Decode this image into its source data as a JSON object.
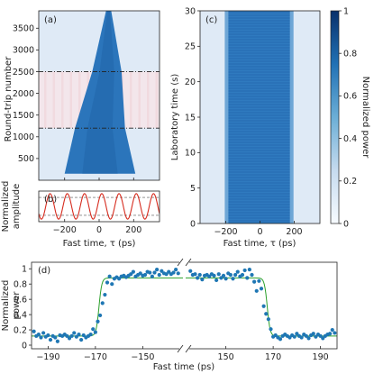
{
  "chart_data": [
    {
      "panel": "(a)",
      "type": "heatmap",
      "xlabel": "",
      "ylabel": "Round-trip number",
      "x_ticks": [
        "-200",
        "0",
        "200"
      ],
      "y_ticks": [
        "500",
        "1000",
        "1500",
        "2000",
        "2500",
        "3000",
        "3500"
      ],
      "xlim": [
        -350,
        350
      ],
      "ylim": [
        0,
        3900
      ],
      "dashed_lines_y": [
        1200,
        2500
      ],
      "shaded_band_y": [
        1200,
        2500
      ],
      "pulse_edges": [
        {
          "n": 150,
          "left": -200,
          "right": 210
        },
        {
          "n": 1200,
          "left": -140,
          "right": 150
        },
        {
          "n": 2500,
          "left": -40,
          "right": 130
        },
        {
          "n": 3900,
          "left": 40,
          "right": 70
        }
      ]
    },
    {
      "panel": "(b)",
      "type": "line",
      "xlabel": "Fast time, τ (ps)",
      "ylabel": "Normalized amplitude",
      "x_ticks": [
        "-200",
        "0",
        "200"
      ],
      "xlim": [
        -350,
        350
      ],
      "ylim": [
        -1.2,
        1.2
      ],
      "period_ps": 100,
      "dashed_lines_y": [
        0.7,
        -0.7
      ],
      "color": "#d62b1e"
    },
    {
      "panel": "(c)",
      "type": "heatmap",
      "xlabel": "Fast time, τ (ps)",
      "ylabel": "Laboratory time (s)",
      "x_ticks": [
        "-200",
        "0",
        "200"
      ],
      "y_ticks": [
        "0",
        "5",
        "10",
        "15",
        "20",
        "25",
        "30"
      ],
      "xlim": [
        -350,
        350
      ],
      "ylim": [
        0,
        30
      ],
      "pulse_left": -190,
      "pulse_right": 180,
      "colorbar": {
        "label": "Normalized power",
        "ticks": [
          "0",
          "0.2",
          "0.4",
          "0.6",
          "0.8",
          "1"
        ],
        "range": [
          0,
          1
        ]
      }
    },
    {
      "panel": "(d)",
      "type": "scatter",
      "xlabel": "Fast time (ps)",
      "ylabel": "Normalized power",
      "ylim": [
        0,
        1.05
      ],
      "y_ticks": [
        "0",
        "0.2",
        "0.4",
        "0.6",
        "0.8",
        "1"
      ],
      "left_segment": {
        "xlim": [
          -197,
          -133
        ],
        "x_ticks": [
          "-190",
          "-170",
          "-150"
        ]
      },
      "right_segment": {
        "xlim": [
          133,
          197
        ],
        "x_ticks": [
          "150",
          "170",
          "190"
        ]
      },
      "fit_color": "#2ca02c",
      "points_color": "#1f77b4",
      "fit_levels": {
        "low": 0.12,
        "high": 0.88
      },
      "left_edge_ps": -168.5,
      "right_edge_ps": 167.5,
      "points_left": [
        [
          -196,
          0.18
        ],
        [
          -195,
          0.12
        ],
        [
          -194,
          0.14
        ],
        [
          -193,
          0.1
        ],
        [
          -192,
          0.16
        ],
        [
          -191,
          0.11
        ],
        [
          -190,
          0.13
        ],
        [
          -189,
          0.07
        ],
        [
          -188,
          0.12
        ],
        [
          -187,
          0.1
        ],
        [
          -186,
          0.05
        ],
        [
          -185,
          0.13
        ],
        [
          -184,
          0.12
        ],
        [
          -183,
          0.14
        ],
        [
          -182,
          0.12
        ],
        [
          -181,
          0.09
        ],
        [
          -180,
          0.12
        ],
        [
          -179,
          0.16
        ],
        [
          -178,
          0.11
        ],
        [
          -177,
          0.14
        ],
        [
          -176,
          0.07
        ],
        [
          -175,
          0.13
        ],
        [
          -174,
          0.1
        ],
        [
          -173,
          0.12
        ],
        [
          -172,
          0.14
        ],
        [
          -171,
          0.21
        ],
        [
          -170,
          0.17
        ],
        [
          -169,
          0.31
        ],
        [
          -168,
          0.39
        ],
        [
          -167,
          0.55
        ],
        [
          -166,
          0.66
        ],
        [
          -165,
          0.82
        ],
        [
          -164,
          0.9
        ],
        [
          -163,
          0.8
        ],
        [
          -162,
          0.87
        ],
        [
          -161,
          0.89
        ],
        [
          -160,
          0.87
        ],
        [
          -159,
          0.9
        ],
        [
          -158,
          0.91
        ],
        [
          -157,
          0.89
        ],
        [
          -156,
          0.91
        ],
        [
          -155,
          0.93
        ],
        [
          -154,
          0.96
        ],
        [
          -153,
          0.9
        ],
        [
          -152,
          0.92
        ],
        [
          -151,
          0.94
        ],
        [
          -150,
          0.91
        ],
        [
          -149,
          0.92
        ],
        [
          -148,
          0.96
        ],
        [
          -147,
          0.95
        ],
        [
          -146,
          0.9
        ],
        [
          -145,
          0.95
        ],
        [
          -144,
          0.99
        ],
        [
          -143,
          0.92
        ],
        [
          -142,
          0.97
        ],
        [
          -141,
          0.94
        ],
        [
          -140,
          0.93
        ],
        [
          -139,
          0.96
        ],
        [
          -138,
          0.93
        ],
        [
          -137,
          0.95
        ],
        [
          -136,
          0.99
        ],
        [
          -135,
          0.94
        ]
      ],
      "points_right": [
        [
          135,
          0.97
        ],
        [
          136,
          0.92
        ],
        [
          137,
          0.93
        ],
        [
          138,
          0.88
        ],
        [
          139,
          0.92
        ],
        [
          140,
          0.86
        ],
        [
          141,
          0.91
        ],
        [
          142,
          0.92
        ],
        [
          143,
          0.9
        ],
        [
          144,
          0.93
        ],
        [
          145,
          0.91
        ],
        [
          146,
          0.85
        ],
        [
          147,
          0.93
        ],
        [
          148,
          0.88
        ],
        [
          149,
          0.91
        ],
        [
          150,
          0.87
        ],
        [
          151,
          0.94
        ],
        [
          152,
          0.92
        ],
        [
          153,
          0.87
        ],
        [
          154,
          0.92
        ],
        [
          155,
          0.96
        ],
        [
          156,
          0.9
        ],
        [
          157,
          0.92
        ],
        [
          158,
          0.98
        ],
        [
          159,
          0.88
        ],
        [
          160,
          0.99
        ],
        [
          161,
          0.92
        ],
        [
          162,
          0.83
        ],
        [
          163,
          0.71
        ],
        [
          164,
          0.84
        ],
        [
          165,
          0.74
        ],
        [
          166,
          0.51
        ],
        [
          167,
          0.41
        ],
        [
          168,
          0.34
        ],
        [
          169,
          0.21
        ],
        [
          170,
          0.11
        ],
        [
          171,
          0.13
        ],
        [
          172,
          0.1
        ],
        [
          173,
          0.08
        ],
        [
          174,
          0.12
        ],
        [
          175,
          0.14
        ],
        [
          176,
          0.12
        ],
        [
          177,
          0.1
        ],
        [
          178,
          0.13
        ],
        [
          179,
          0.11
        ],
        [
          180,
          0.15
        ],
        [
          181,
          0.12
        ],
        [
          182,
          0.1
        ],
        [
          183,
          0.14
        ],
        [
          184,
          0.12
        ],
        [
          185,
          0.09
        ],
        [
          186,
          0.13
        ],
        [
          187,
          0.15
        ],
        [
          188,
          0.11
        ],
        [
          189,
          0.14
        ],
        [
          190,
          0.12
        ],
        [
          191,
          0.09
        ],
        [
          192,
          0.12
        ],
        [
          193,
          0.14
        ],
        [
          194,
          0.15
        ],
        [
          195,
          0.2
        ],
        [
          196,
          0.16
        ]
      ]
    }
  ]
}
